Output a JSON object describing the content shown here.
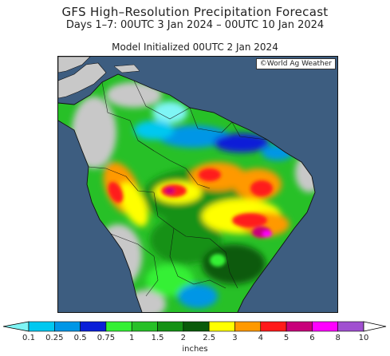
{
  "title": "GFS High–Resolution Precipitation Forecast",
  "subtitle": "Days 1–7: 00UTC 3 Jan 2024 – 00UTC 10 Jan 2024",
  "init_text": "Model Initialized 00UTC 2 Jan 2024",
  "credit": "©World Ag Weather",
  "legend": {
    "units": "inches",
    "ticks": [
      "0.1",
      "0.25",
      "0.5",
      "0.75",
      "1",
      "1.5",
      "2",
      "2.5",
      "3",
      "4",
      "5",
      "6",
      "8",
      "10"
    ],
    "colors": [
      "#7ff5f5",
      "#00c8f0",
      "#0096e6",
      "#0a1fd8",
      "#34f034",
      "#27c027",
      "#159115",
      "#0a5a0a",
      "#ffff00",
      "#ff9900",
      "#ff1a1a",
      "#c8007a",
      "#ff00ff",
      "#a050d0"
    ],
    "under_color": "#7ff5f5",
    "over_color": "#ffffff"
  },
  "map_colors": {
    "ocean": "#3d5d80",
    "dry_land": "#c8c8c8",
    "border": "#111111"
  }
}
